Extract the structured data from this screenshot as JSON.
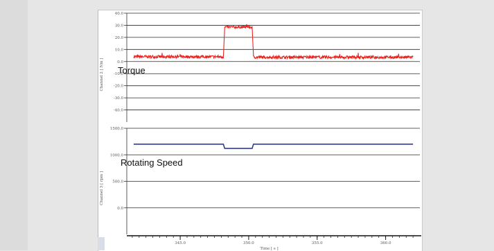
{
  "chart_data": [
    {
      "type": "line",
      "label": "Torque",
      "ylabel": "Channel 2 [ Nm ]",
      "ylim": [
        -50,
        40
      ],
      "yticks": [
        "40.0",
        "30.0",
        "20.0",
        "10.0",
        "0.0",
        "-10.0",
        "-20.0",
        "-30.0",
        "-40.0"
      ],
      "series": [
        {
          "color": "#e8231f",
          "segments": [
            {
              "x": [
                3416,
                3481.5
              ],
              "y_mean": 4.0,
              "noise": 1.2
            },
            {
              "x": [
                3482.5,
                3502.5
              ],
              "y_mean": 28.5,
              "noise": 1.0
            },
            {
              "x": [
                3503.5,
                3620
              ],
              "y_mean": 3.6,
              "noise": 1.2
            }
          ]
        }
      ]
    },
    {
      "type": "line",
      "label": "Rotating Speed",
      "ylabel": "Channel 3 [ rpm ]",
      "ylim": [
        -500,
        1500
      ],
      "yticks": [
        "1500.0",
        "1000.0",
        "500.0",
        "0.0"
      ],
      "series": [
        {
          "color": "#2e3a9a",
          "segments": [
            {
              "x": [
                3416,
                3481.5
              ],
              "y_mean": 1200
            },
            {
              "x": [
                3482.5,
                3502.5
              ],
              "y_mean": 1120
            },
            {
              "x": [
                3503.5,
                3620
              ],
              "y_mean": 1200
            }
          ]
        }
      ]
    }
  ],
  "x_axis": {
    "xlabel": "Time [ s ]",
    "xlim": [
      3411,
      3625
    ],
    "ticks": [
      {
        "value": 3450,
        "label": "345.0"
      },
      {
        "value": 3500,
        "label": "350.0"
      },
      {
        "value": 3550,
        "label": "355.0"
      },
      {
        "value": 3600,
        "label": "360.0"
      }
    ]
  }
}
